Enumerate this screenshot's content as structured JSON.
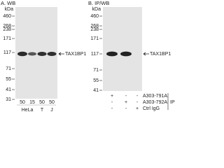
{
  "panels": [
    {
      "title": "A. WB",
      "unit": "kDa",
      "markers": [
        "460",
        "268",
        "238",
        "171",
        "117",
        "71",
        "55",
        "41",
        "31"
      ],
      "target": "TAX1BP1",
      "amounts": [
        "50",
        "15",
        "50",
        "50"
      ],
      "samples": [
        "HeLa",
        "T",
        "J"
      ]
    },
    {
      "title": "B. IP/WB",
      "unit": "kDa",
      "markers": [
        "460",
        "268",
        "238",
        "171",
        "117",
        "71",
        "55",
        "41"
      ],
      "target": "TAX1BP1",
      "rows": [
        {
          "label": "A303-791A",
          "signs": [
            "+",
            "-",
            "-"
          ]
        },
        {
          "label": "A303-792A",
          "signs": [
            "-",
            "+",
            "-"
          ]
        },
        {
          "label": "Ctrl IgG",
          "signs": [
            "-",
            "-",
            "+"
          ]
        }
      ],
      "group": "IP"
    }
  ]
}
